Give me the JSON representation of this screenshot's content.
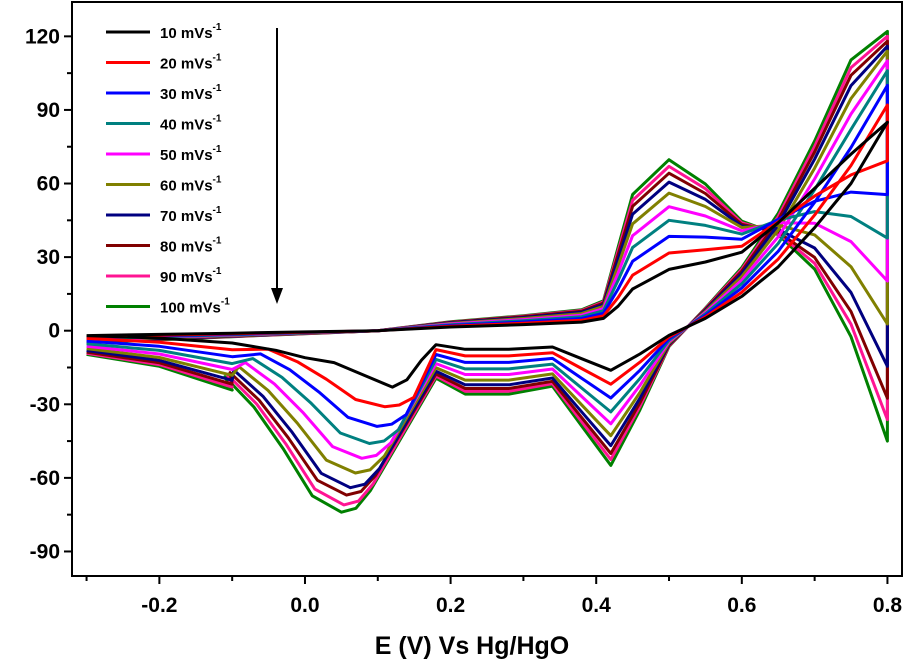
{
  "chart_data": {
    "type": "line",
    "title": "",
    "xlabel": "E (V) Vs Hg/HgO",
    "ylabel": "",
    "xlim": [
      -0.32,
      0.82
    ],
    "ylim": [
      -100,
      134
    ],
    "x_ticks": [
      -0.2,
      0.0,
      0.2,
      0.4,
      0.6,
      0.8
    ],
    "x_tick_labels": [
      "-0.2",
      "0.0",
      "0.2",
      "0.4",
      "0.6",
      "0.8"
    ],
    "y_ticks": [
      120,
      90,
      60,
      30,
      0,
      -30,
      -60,
      -90
    ],
    "y_tick_labels": [
      "120",
      "90",
      "60",
      "30",
      "0",
      "-30",
      "-60",
      "-90"
    ],
    "grid": false,
    "legend_position": "top-left",
    "annotation": "down-arrow indicating increasing scan rate",
    "base_scan": {
      "anodic_x": [
        -0.3,
        -0.2,
        -0.1,
        0.0,
        0.1,
        0.2,
        0.3,
        0.38,
        0.41,
        0.43,
        0.45,
        0.5,
        0.55,
        0.6,
        0.65,
        0.7,
        0.75,
        0.8
      ],
      "anodic_y": [
        -2,
        -1.5,
        -1,
        -0.5,
        0,
        1.5,
        2.5,
        3.5,
        5,
        10,
        17,
        25,
        28,
        32,
        44,
        58,
        72,
        85
      ],
      "cathodic_x": [
        0.8,
        0.75,
        0.7,
        0.65,
        0.6,
        0.55,
        0.5,
        0.46,
        0.42,
        0.38,
        0.34,
        0.28,
        0.22,
        0.18,
        0.16,
        0.14,
        0.12,
        0.08,
        0.04,
        0.0,
        -0.04,
        -0.1,
        -0.2,
        -0.3
      ],
      "cathodic_y": [
        85,
        60,
        42,
        26,
        14,
        5,
        -2,
        -10,
        -17,
        -12,
        -7,
        -8,
        -8,
        -6,
        -12,
        -20,
        -23,
        -18,
        -13,
        -11,
        -8,
        -5,
        -3,
        -2
      ]
    },
    "peak_shift": [
      [
        0.0,
        0.0,
        0.0
      ],
      [
        0.02,
        -0.03,
        0.0
      ],
      [
        0.04,
        -0.06,
        0.0
      ],
      [
        0.055,
        -0.09,
        0.0
      ],
      [
        0.065,
        -0.12,
        0.0
      ],
      [
        0.08,
        -0.145,
        0.0
      ],
      [
        0.095,
        -0.165,
        0.0
      ],
      [
        0.11,
        -0.18,
        0.0
      ],
      [
        0.12,
        -0.19,
        0.0
      ],
      [
        0.13,
        -0.2,
        0.0
      ]
    ],
    "series": [
      {
        "name": "10 mVs",
        "superscript": "-1",
        "color": "#000000",
        "end_y": 85,
        "redox_scale": 1.0,
        "cathodic_depth": 0
      },
      {
        "name": "20 mVs",
        "superscript": "-1",
        "color": "#ff0000",
        "end_y": 92,
        "redox_scale": 1.35,
        "cathodic_depth": 31
      },
      {
        "name": "30 mVs",
        "superscript": "-1",
        "color": "#0000ff",
        "end_y": 100,
        "redox_scale": 1.7,
        "cathodic_depth": 39
      },
      {
        "name": "40 mVs",
        "superscript": "-1",
        "color": "#008080",
        "end_y": 106,
        "redox_scale": 2.05,
        "cathodic_depth": 46
      },
      {
        "name": "50 mVs",
        "superscript": "-1",
        "color": "#ff00ff",
        "end_y": 110,
        "redox_scale": 2.35,
        "cathodic_depth": 52
      },
      {
        "name": "60 mVs",
        "superscript": "-1",
        "color": "#808000",
        "end_y": 114,
        "redox_scale": 2.65,
        "cathodic_depth": 58
      },
      {
        "name": "70 mVs",
        "superscript": "-1",
        "color": "#000080",
        "end_y": 116,
        "redox_scale": 2.9,
        "cathodic_depth": 64
      },
      {
        "name": "80 mVs",
        "superscript": "-1",
        "color": "#800000",
        "end_y": 118,
        "redox_scale": 3.1,
        "cathodic_depth": 67
      },
      {
        "name": "90 mVs",
        "superscript": "-1",
        "color": "#ff1493",
        "end_y": 120,
        "redox_scale": 3.25,
        "cathodic_depth": 71
      },
      {
        "name": "100 mVs",
        "superscript": "-1",
        "color": "#008000",
        "end_y": 122,
        "redox_scale": 3.4,
        "cathodic_depth": 74
      }
    ]
  }
}
